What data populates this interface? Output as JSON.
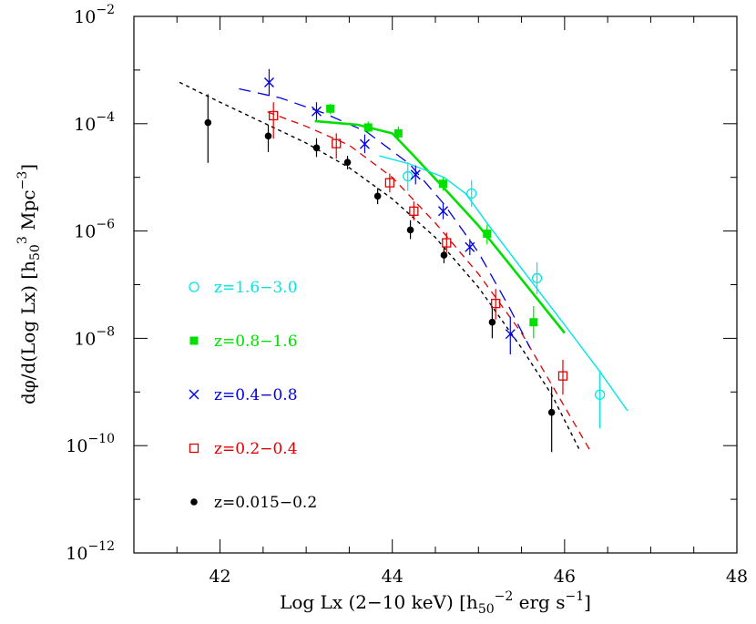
{
  "chart_data": {
    "type": "scatter",
    "title": "",
    "xlabel": {
      "pre": "Log Lx (2−10 keV) [h",
      "sub": "50",
      "sup": "−2",
      "post": " erg s",
      "sup2": "−1",
      "end": "]"
    },
    "ylabel": {
      "pre": "dφ/d(Log Lx) [h",
      "sub": "50",
      "sup": "3",
      "post": " Mpc",
      "sup2": "−3",
      "end": "]"
    },
    "xlim": [
      41,
      48
    ],
    "ylim_log10": [
      -12,
      -2
    ],
    "x_ticks": [
      {
        "value": 42,
        "label": "42"
      },
      {
        "value": 44,
        "label": "44"
      },
      {
        "value": 46,
        "label": "46"
      },
      {
        "value": 48,
        "label": "48"
      }
    ],
    "y_ticks": [
      {
        "exp": -2,
        "base": "10",
        "sup": "−2"
      },
      {
        "exp": -4,
        "base": "10",
        "sup": "−4"
      },
      {
        "exp": -6,
        "base": "10",
        "sup": "−6"
      },
      {
        "exp": -8,
        "base": "10",
        "sup": "−8"
      },
      {
        "exp": -10,
        "base": "10",
        "sup": "−10"
      },
      {
        "exp": -12,
        "base": "10",
        "sup": "−12"
      }
    ],
    "series": [
      {
        "name": "z=1.6−3.0",
        "marker": "open-circle",
        "color": "#00e5e5",
        "dash": "",
        "width": 1.4,
        "points": [
          {
            "x": 44.18,
            "y": -4.98,
            "ylo": -5.25,
            "yhi": -4.72
          },
          {
            "x": 44.92,
            "y": -5.3,
            "ylo": -5.55,
            "yhi": -5.05
          },
          {
            "x": 45.68,
            "y": -6.88,
            "ylo": -7.18,
            "yhi": -6.58
          },
          {
            "x": 46.41,
            "y": -9.05,
            "ylo": -9.68,
            "yhi": -8.6
          }
        ],
        "model": [
          [
            43.85,
            -4.6
          ],
          [
            44.2,
            -4.75
          ],
          [
            44.6,
            -5.0
          ],
          [
            44.85,
            -5.3
          ],
          [
            45.1,
            -5.85
          ],
          [
            45.5,
            -6.7
          ],
          [
            46.0,
            -7.75
          ],
          [
            46.4,
            -8.6
          ],
          [
            46.73,
            -9.35
          ]
        ]
      },
      {
        "name": "z=0.8−1.6",
        "marker": "filled-square",
        "color": "#00e000",
        "dash": "",
        "width": 2.6,
        "points": [
          {
            "x": 43.28,
            "y": -3.72,
            "ylo": -3.82,
            "yhi": -3.63
          },
          {
            "x": 43.72,
            "y": -4.07,
            "ylo": -4.18,
            "yhi": -3.96
          },
          {
            "x": 44.07,
            "y": -4.18,
            "ylo": -4.3,
            "yhi": -4.05
          },
          {
            "x": 44.59,
            "y": -5.12,
            "ylo": -5.25,
            "yhi": -5.0
          },
          {
            "x": 45.1,
            "y": -6.05,
            "ylo": -6.25,
            "yhi": -5.88
          },
          {
            "x": 45.64,
            "y": -7.7,
            "ylo": -8.0,
            "yhi": -7.4
          }
        ],
        "model": [
          [
            43.1,
            -3.95
          ],
          [
            43.6,
            -4.02
          ],
          [
            44.0,
            -4.18
          ],
          [
            44.25,
            -4.6
          ],
          [
            44.6,
            -5.2
          ],
          [
            45.0,
            -5.9
          ],
          [
            45.5,
            -6.9
          ],
          [
            46.0,
            -7.9
          ]
        ]
      },
      {
        "name": "z=0.4−0.8",
        "marker": "cross",
        "color": "#0000dd",
        "dash": "13 8",
        "width": 1.3,
        "points": [
          {
            "x": 42.57,
            "y": -3.23,
            "ylo": -3.48,
            "yhi": -2.98
          },
          {
            "x": 43.12,
            "y": -3.77,
            "ylo": -3.93,
            "yhi": -3.6
          },
          {
            "x": 43.68,
            "y": -4.38,
            "ylo": -4.55,
            "yhi": -4.2
          },
          {
            "x": 44.27,
            "y": -4.95,
            "ylo": -5.13,
            "yhi": -4.78
          },
          {
            "x": 44.59,
            "y": -5.63,
            "ylo": -5.78,
            "yhi": -5.48
          },
          {
            "x": 44.9,
            "y": -6.3,
            "ylo": -6.45,
            "yhi": -6.15
          },
          {
            "x": 45.37,
            "y": -7.92,
            "ylo": -8.3,
            "yhi": -7.6
          }
        ],
        "model": [
          [
            42.22,
            -3.35
          ],
          [
            42.7,
            -3.52
          ],
          [
            43.2,
            -3.8
          ],
          [
            43.7,
            -4.15
          ],
          [
            44.2,
            -4.75
          ],
          [
            44.6,
            -5.5
          ],
          [
            45.0,
            -6.4
          ],
          [
            45.35,
            -7.4
          ],
          [
            45.6,
            -8.18
          ]
        ]
      },
      {
        "name": "z=0.2−0.4",
        "marker": "open-square",
        "color": "#dd0000",
        "dash": "8 6",
        "width": 1.3,
        "points": [
          {
            "x": 42.62,
            "y": -3.85,
            "ylo": -4.28,
            "yhi": -3.6
          },
          {
            "x": 43.35,
            "y": -4.37,
            "ylo": -4.65,
            "yhi": -4.18
          },
          {
            "x": 43.97,
            "y": -5.1,
            "ylo": -5.28,
            "yhi": -4.93
          },
          {
            "x": 44.25,
            "y": -5.63,
            "ylo": -5.8,
            "yhi": -5.45
          },
          {
            "x": 44.63,
            "y": -6.22,
            "ylo": -6.4,
            "yhi": -6.03
          },
          {
            "x": 45.2,
            "y": -7.35,
            "ylo": -7.65,
            "yhi": -7.08
          },
          {
            "x": 45.98,
            "y": -8.7,
            "ylo": -9.05,
            "yhi": -8.4
          }
        ],
        "model": [
          [
            42.55,
            -3.78
          ],
          [
            43.0,
            -4.05
          ],
          [
            43.5,
            -4.4
          ],
          [
            44.0,
            -5.0
          ],
          [
            44.5,
            -5.85
          ],
          [
            45.0,
            -6.8
          ],
          [
            45.5,
            -7.9
          ],
          [
            46.3,
            -10.1
          ]
        ]
      },
      {
        "name": "z=0.015−0.2",
        "marker": "filled-circle",
        "color": "#000000",
        "dash": "4 4",
        "width": 1.4,
        "points": [
          {
            "x": 41.86,
            "y": -3.98,
            "ylo": -4.73,
            "yhi": -3.45
          },
          {
            "x": 42.56,
            "y": -4.23,
            "ylo": -4.53,
            "yhi": -4.02
          },
          {
            "x": 43.12,
            "y": -4.45,
            "ylo": -4.62,
            "yhi": -4.27
          },
          {
            "x": 43.48,
            "y": -4.72,
            "ylo": -4.85,
            "yhi": -4.6
          },
          {
            "x": 43.83,
            "y": -5.35,
            "ylo": -5.5,
            "yhi": -5.2
          },
          {
            "x": 44.21,
            "y": -5.98,
            "ylo": -6.15,
            "yhi": -5.8
          },
          {
            "x": 44.6,
            "y": -6.45,
            "ylo": -6.6,
            "yhi": -6.3
          },
          {
            "x": 45.16,
            "y": -7.7,
            "ylo": -8.0,
            "yhi": -7.4
          },
          {
            "x": 45.85,
            "y": -9.38,
            "ylo": -10.12,
            "yhi": -8.9
          }
        ],
        "model": [
          [
            41.53,
            -3.23
          ],
          [
            42.0,
            -3.6
          ],
          [
            42.5,
            -3.98
          ],
          [
            43.0,
            -4.36
          ],
          [
            43.5,
            -4.82
          ],
          [
            44.0,
            -5.4
          ],
          [
            44.5,
            -6.12
          ],
          [
            45.0,
            -7.05
          ],
          [
            45.5,
            -8.18
          ],
          [
            45.85,
            -9.05
          ],
          [
            46.18,
            -10.1
          ]
        ]
      }
    ],
    "legend": {
      "placement": "left",
      "entries": [
        {
          "series": 0,
          "label": "z=1.6−3.0"
        },
        {
          "series": 1,
          "label": "z=0.8−1.6"
        },
        {
          "series": 2,
          "label": "z=0.4−0.8"
        },
        {
          "series": 3,
          "label": "z=0.2−0.4"
        },
        {
          "series": 4,
          "label": "z=0.015−0.2"
        }
      ]
    },
    "grid": false
  }
}
